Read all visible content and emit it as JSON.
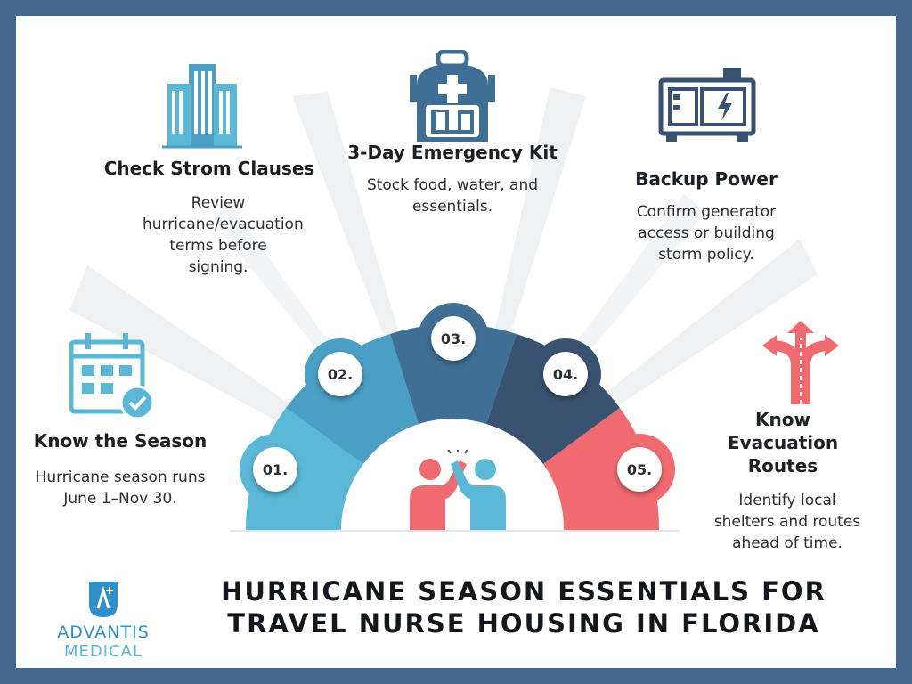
{
  "items": [
    {
      "number": "01.",
      "title": "Know the Season",
      "desc": "Hurricane season runs June 1–Nov 30.",
      "icon": "calendar-icon",
      "color": "#5ab8d6"
    },
    {
      "number": "02.",
      "title": "Check Strom Clauses",
      "desc": "Review hurricane/evacuation terms before signing.",
      "icon": "buildings-icon",
      "color": "#4a9fc4"
    },
    {
      "number": "03.",
      "title": "3-Day Emergency Kit",
      "desc": "Stock food, water, and essentials.",
      "icon": "backpack-icon",
      "color": "#3f6f94"
    },
    {
      "number": "04.",
      "title": "Backup Power",
      "desc": "Confirm generator access or building storm policy.",
      "icon": "generator-icon",
      "color": "#3a5272"
    },
    {
      "number": "05.",
      "title": "Know Evacuation Routes",
      "desc": "Identify local shelters and routes ahead of time.",
      "icon": "arrows-split-icon",
      "color": "#f06b6f"
    }
  ],
  "center_icon": "high-five-icon",
  "title_line1": "HURRICANE SEASON ESSENTIALS FOR",
  "title_line2": "TRAVEL NURSE HOUSING IN FLORIDA",
  "logo": {
    "line1": "ADVANTIS",
    "line2": "MEDICAL",
    "icon": "advantis-logo-icon"
  },
  "colors": {
    "frame": "#46698f",
    "teal": "#5ab8d6",
    "navy": "#3a5272",
    "coral": "#f06b6f"
  }
}
